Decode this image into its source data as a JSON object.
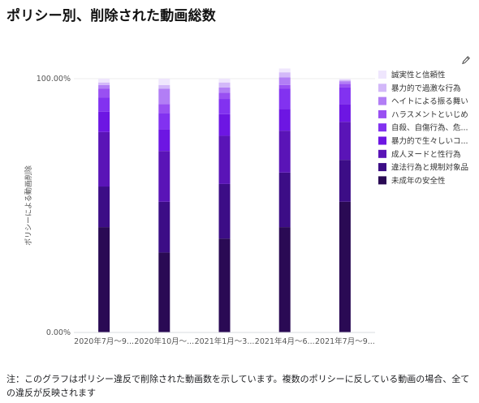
{
  "title": "ポリシー別、削除された動画総数",
  "note": "注：このグラフはポリシー違反で削除された動画数を示しています。複数のポリシーに反している動画の場合、全ての違反が反映されます",
  "edit_icon": "pencil-icon",
  "chart_data": {
    "type": "bar",
    "stacked": true,
    "normalized": true,
    "title": "ポリシー別、削除された動画総数",
    "xlabel": "",
    "ylabel": "ポリシーによる動画削除",
    "ylim": [
      0,
      100
    ],
    "yticks": [
      "0.00%",
      "100.00%"
    ],
    "categories": [
      "2020年7月～9...",
      "2020年10月～...",
      "2021年1月～3...",
      "2021年4月～6...",
      "2021年7月～9..."
    ],
    "legend_position": "right",
    "series": [
      {
        "name": "未成年の安全性",
        "color": "#2a0a54",
        "values": [
          41.5,
          31.5,
          37.0,
          41.5,
          51.5
        ]
      },
      {
        "name": "違法行為と規制対象品",
        "color": "#3c0d86",
        "values": [
          16.0,
          20.0,
          21.5,
          21.5,
          16.5
        ]
      },
      {
        "name": "成人ヌードと性行為",
        "color": "#5a14b7",
        "values": [
          21.5,
          20.0,
          19.0,
          16.5,
          15.0
        ]
      },
      {
        "name": "暴力的で生々しいコ...",
        "color": "#6d16e3",
        "values": [
          8.0,
          8.5,
          8.5,
          8.5,
          7.0
        ]
      },
      {
        "name": "自殺、自傷行為、危...",
        "color": "#8232f0",
        "values": [
          5.5,
          6.5,
          6.0,
          8.0,
          6.5
        ]
      },
      {
        "name": "ハラスメントといじめ",
        "color": "#9950f2",
        "values": [
          3.5,
          3.5,
          2.5,
          1.5,
          1.5
        ]
      },
      {
        "name": "ヘイトによる振る舞い",
        "color": "#b27ef5",
        "values": [
          1.5,
          6.0,
          2.0,
          3.0,
          1.0
        ]
      },
      {
        "name": "暴力的で過激な行為",
        "color": "#d3b8f9",
        "values": [
          1.0,
          1.5,
          2.0,
          2.0,
          0.5
        ]
      },
      {
        "name": "誠実性と信頼性",
        "color": "#efe6fd",
        "values": [
          1.5,
          2.5,
          1.5,
          1.5,
          0.5
        ]
      }
    ]
  }
}
